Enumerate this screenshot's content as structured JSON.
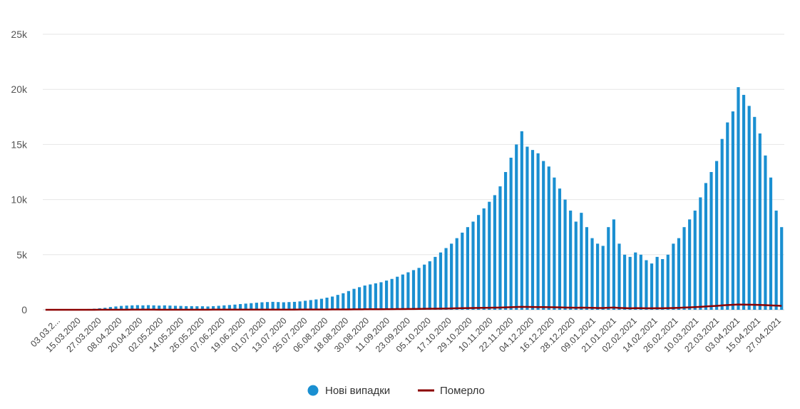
{
  "colors": {
    "cases": "#1a8fd1",
    "deaths": "#8b0000",
    "grid": "#e6e6e6",
    "text": "#555555"
  },
  "chart_data": {
    "type": "bar",
    "title": "",
    "xlabel": "",
    "ylabel": "",
    "ylim": [
      0,
      25000
    ],
    "yticks": [
      {
        "value": 0,
        "label": "0"
      },
      {
        "value": 5000,
        "label": "5k"
      },
      {
        "value": 10000,
        "label": "10k"
      },
      {
        "value": 15000,
        "label": "15k"
      },
      {
        "value": 20000,
        "label": "20k"
      },
      {
        "value": 25000,
        "label": "25k"
      }
    ],
    "x_tick_labels": [
      "03.03.2...",
      "15.03.2020",
      "27.03.2020",
      "08.04.2020",
      "20.04.2020",
      "02.05.2020",
      "14.05.2020",
      "26.05.2020",
      "07.06.2020",
      "19.06.2020",
      "01.07.2020",
      "13.07.2020",
      "25.07.2020",
      "06.08.2020",
      "18.08.2020",
      "30.08.2020",
      "11.09.2020",
      "23.09.2020",
      "05.10.2020",
      "17.10.2020",
      "29.10.2020",
      "10.11.2020",
      "22.11.2020",
      "04.12.2020",
      "16.12.2020",
      "28.12.2020",
      "09.01.2021",
      "21.01.2021",
      "02.02.2021",
      "14.02.2021",
      "26.02.2021",
      "10.03.2021",
      "22.03.2021",
      "03.04.2021",
      "15.04.2021",
      "27.04.2021"
    ],
    "legend_position": "bottom-center",
    "series": [
      {
        "name": "Нові випадки",
        "type": "bar",
        "color": "#1a8fd1",
        "sampling": "every 2nd day, from 03.03.2020",
        "values": [
          1,
          0,
          0,
          2,
          4,
          10,
          15,
          40,
          70,
          100,
          140,
          180,
          250,
          300,
          350,
          380,
          400,
          420,
          400,
          420,
          400,
          380,
          400,
          380,
          360,
          350,
          330,
          330,
          320,
          320,
          300,
          330,
          360,
          400,
          430,
          470,
          520,
          560,
          600,
          640,
          680,
          700,
          720,
          700,
          680,
          700,
          720,
          760,
          820,
          880,
          940,
          1000,
          1100,
          1200,
          1350,
          1500,
          1700,
          1900,
          2050,
          2200,
          2300,
          2400,
          2500,
          2650,
          2800,
          3000,
          3200,
          3400,
          3600,
          3800,
          4100,
          4400,
          4800,
          5200,
          5600,
          6000,
          6500,
          7000,
          7500,
          8000,
          8600,
          9200,
          9800,
          10400,
          11200,
          12500,
          13800,
          15000,
          16200,
          14800,
          14500,
          14200,
          13500,
          13000,
          12000,
          11000,
          10000,
          9000,
          8000,
          8800,
          7500,
          6500,
          6000,
          5800,
          7500,
          8200,
          6000,
          5000,
          4800,
          5200,
          5000,
          4500,
          4200,
          4800,
          4600,
          5000,
          6000,
          6500,
          7500,
          8200,
          9000,
          10200,
          11500,
          12500,
          13500,
          15500,
          17000,
          18000,
          20200,
          19500,
          18500,
          17500,
          16000,
          14000,
          12000,
          9000,
          7500
        ]
      },
      {
        "name": "Померло",
        "type": "line",
        "color": "#8b0000",
        "sampling": "every 2nd day, from 03.03.2020",
        "values": [
          0,
          0,
          0,
          0,
          0,
          0,
          1,
          2,
          3,
          4,
          5,
          6,
          8,
          9,
          10,
          11,
          12,
          13,
          12,
          12,
          12,
          11,
          11,
          11,
          10,
          10,
          9,
          9,
          10,
          10,
          11,
          12,
          13,
          14,
          15,
          16,
          17,
          18,
          19,
          20,
          20,
          20,
          20,
          19,
          19,
          19,
          20,
          21,
          22,
          23,
          24,
          25,
          27,
          29,
          31,
          33,
          36,
          39,
          42,
          45,
          47,
          49,
          52,
          55,
          58,
          62,
          66,
          70,
          75,
          80,
          86,
          93,
          100,
          108,
          116,
          125,
          134,
          143,
          152,
          160,
          168,
          176,
          185,
          195,
          205,
          220,
          235,
          250,
          265,
          255,
          250,
          245,
          240,
          235,
          225,
          215,
          205,
          195,
          185,
          195,
          185,
          175,
          165,
          160,
          185,
          200,
          170,
          150,
          140,
          150,
          145,
          140,
          135,
          145,
          140,
          150,
          165,
          180,
          200,
          220,
          240,
          270,
          300,
          330,
          360,
          400,
          430,
          450,
          480,
          470,
          460,
          450,
          440,
          420,
          400,
          380,
          360
        ]
      }
    ]
  }
}
